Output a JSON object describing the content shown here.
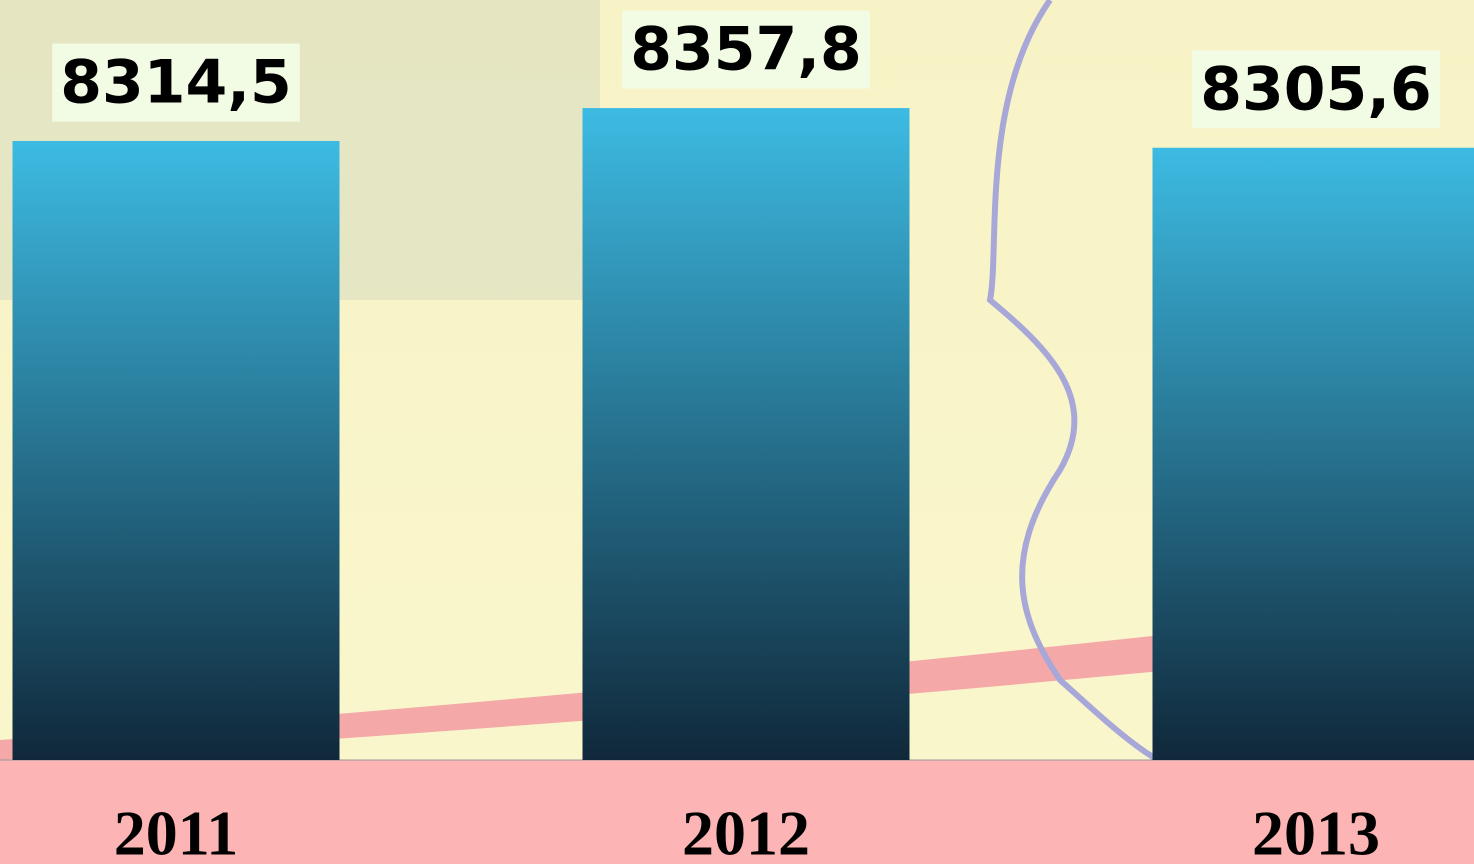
{
  "chart_data": {
    "type": "bar",
    "categories": [
      "2011",
      "2012",
      "2013"
    ],
    "values": [
      8314.5,
      8357.8,
      8305.6
    ],
    "value_labels": [
      "8314,5",
      "8357,8",
      "8305,6"
    ],
    "color_top": "#3dbbe3",
    "color_bottom": "#10283a",
    "ylim": [
      7500,
      8500
    ]
  }
}
